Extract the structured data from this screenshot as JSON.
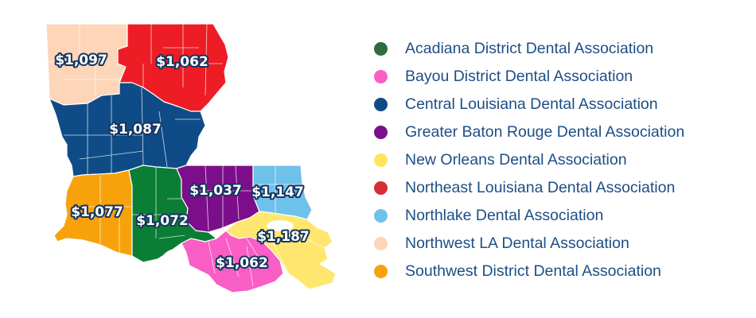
{
  "colors": {
    "northwest": "#fdd5b8",
    "northeast": "#ee1c24",
    "central": "#0f4c87",
    "southwest": "#f8a20b",
    "acadiana": "#0a7e34",
    "baton_rouge": "#7d0e8b",
    "northlake": "#6ec1ea",
    "bayou": "#f85ec5",
    "new_orleans": "#ffe66e",
    "label_outline": "#14365f",
    "legend_text": "#1d4e86"
  },
  "map": {
    "prices": {
      "northwest": "$1,097",
      "northeast": "$1,062",
      "central": "$1,087",
      "southwest": "$1,077",
      "acadiana": "$1,072",
      "baton_rouge": "$1,037",
      "northlake": "$1,147",
      "new_orleans": "$1,187",
      "bayou": "$1,062"
    }
  },
  "legend": [
    {
      "label": "Acadiana District Dental Association",
      "color": "#2e6b3e"
    },
    {
      "label": "Bayou District Dental Association",
      "color": "#f85ec5"
    },
    {
      "label": "Central Louisiana Dental Association",
      "color": "#0f4c87"
    },
    {
      "label": "Greater Baton Rouge Dental Association",
      "color": "#7d0e8b"
    },
    {
      "label": "New Orleans Dental Association",
      "color": "#ffe45c"
    },
    {
      "label": "Northeast Louisiana Dental Association",
      "color": "#d62e34"
    },
    {
      "label": "Northlake Dental Association",
      "color": "#6ec1ea"
    },
    {
      "label": "Northwest LA Dental Association",
      "color": "#fdd5b8"
    },
    {
      "label": "Southwest District Dental Association",
      "color": "#f8a20b"
    }
  ]
}
